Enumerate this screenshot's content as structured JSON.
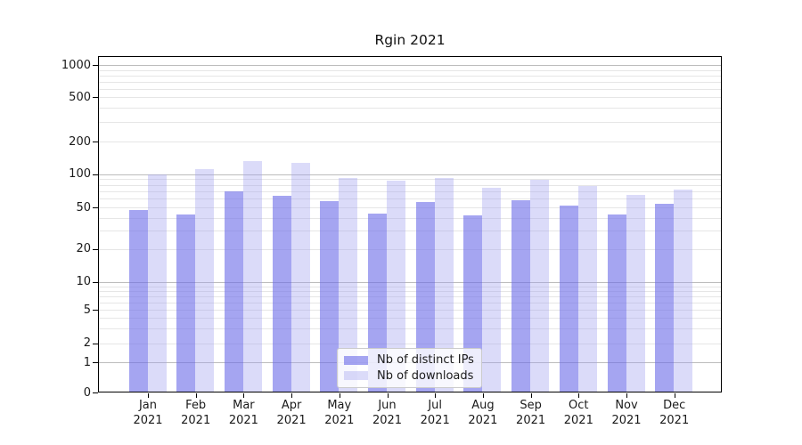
{
  "chart_data": {
    "type": "bar",
    "title": "Rgin 2021",
    "categories": [
      "Jan",
      "Feb",
      "Mar",
      "Apr",
      "May",
      "Jun",
      "Jul",
      "Aug",
      "Sep",
      "Oct",
      "Nov",
      "Dec"
    ],
    "year_label": "2021",
    "series": [
      {
        "name": "Nb of distinct IPs",
        "color": "#6e6ee8",
        "alpha": 0.62,
        "values": [
          47,
          43,
          70,
          64,
          57,
          44,
          56,
          42,
          58,
          52,
          43,
          54
        ]
      },
      {
        "name": "Nb of downloads",
        "color": "#a0a0f0",
        "alpha": 0.38,
        "values": [
          100,
          112,
          132,
          127,
          92,
          87,
          93,
          76,
          89,
          78,
          65,
          73
        ]
      }
    ],
    "y_axis": {
      "scale": "symlog",
      "tick_values": [
        0,
        1,
        2,
        5,
        10,
        20,
        50,
        100,
        200,
        500,
        1000
      ],
      "tick_labels": [
        "0",
        "1",
        "2",
        "5",
        "10",
        "20",
        "50",
        "100",
        "200",
        "500",
        "1000"
      ],
      "major_gridline_values": [
        1,
        10,
        100,
        1000
      ],
      "range": [
        0,
        1200
      ]
    },
    "legend": {
      "position": "bottom-center",
      "entries": [
        "Nb of distinct IPs",
        "Nb of downloads"
      ]
    },
    "grid": true,
    "colors": {
      "major_grid": "#bcbcbc",
      "minor_grid": "#e6e6e6",
      "spine": "#000000",
      "text": "#1a1a1a",
      "legend_border": "#cccccc"
    }
  }
}
